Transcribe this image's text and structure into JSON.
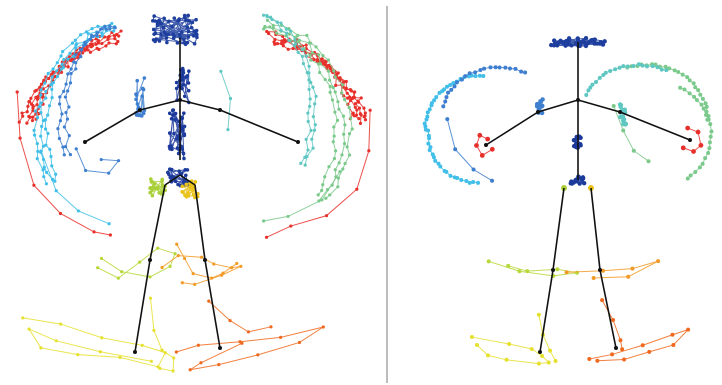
{
  "figure": {
    "panels": [
      {
        "id": "left",
        "description_key": "noisy-trajectories"
      },
      {
        "id": "right",
        "description_key": "smoothed-trajectories"
      }
    ],
    "colors": {
      "head": "#1f3f9f",
      "spine": "#1c3a9c",
      "shoulder_left": "#3f7fcf",
      "shoulder_right": "#5fc7c2",
      "elbow_left": "#58a6e8",
      "elbow_right": "#7cc98c",
      "wrist_left": "#41bfe8",
      "wrist_right": "#96d57a",
      "outer_left": "#e8302b",
      "outer_right": "#e8302b",
      "hip_left": "#a9cf3a",
      "hip_right": "#e9c21a",
      "knee_left": "#b7d839",
      "knee_right": "#f29b26",
      "ankle_left": "#e6e12f",
      "ankle_right": "#ef6a1f",
      "skeleton": "#111111",
      "divider": "#bcbcbc"
    }
  }
}
